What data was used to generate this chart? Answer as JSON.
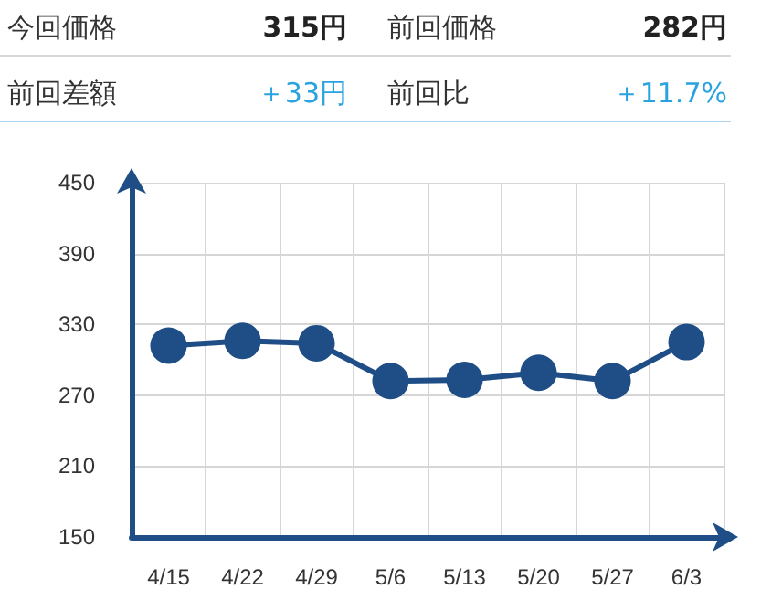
{
  "chart_data": [
    {
      "type": "other",
      "annotations": [
        "今回価格",
        "315円",
        "前回価格",
        "282円",
        "前回差額",
        "＋33円",
        "前回比",
        "＋11.7%"
      ]
    },
    {
      "type": "line",
      "categories": [
        "4/15",
        "4/22",
        "4/29",
        "5/6",
        "5/13",
        "5/20",
        "5/27",
        "6/3"
      ],
      "series": [
        {
          "color": "#1f4e87",
          "values": [
            312,
            316,
            314,
            282,
            283,
            289,
            282,
            315
          ]
        }
      ],
      "ylim": [
        150,
        450
      ],
      "yticks": [
        150,
        210,
        270,
        330,
        390,
        450
      ],
      "grid": true,
      "marker": "circle",
      "line_style": "solid"
    }
  ]
}
